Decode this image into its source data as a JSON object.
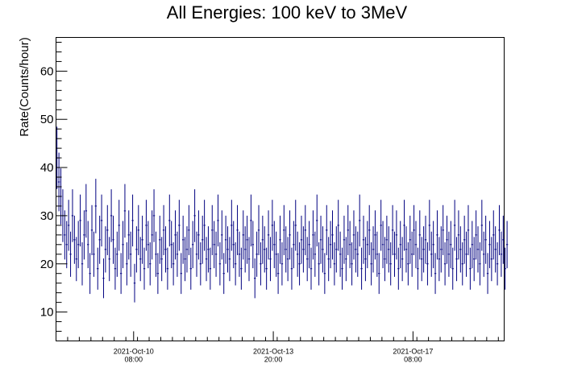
{
  "chart_data": {
    "type": "scatter",
    "title": "All Energies:  100 keV to 3MeV",
    "xlabel": "",
    "ylabel": "Rate(Counts/hour)",
    "x_units": "hours",
    "xlim": [
      0,
      231
    ],
    "ylim": [
      4,
      67
    ],
    "y_ticks": [
      10,
      20,
      30,
      40,
      50,
      60
    ],
    "x_ticks": [
      {
        "x": 40,
        "date": "2021-Oct-10",
        "time": "08:00"
      },
      {
        "x": 112,
        "date": "2021-Oct-13",
        "time": "20:00"
      },
      {
        "x": 184,
        "date": "2021-Oct-17",
        "time": "08:00"
      }
    ],
    "grid": false,
    "error_bars": true,
    "series": [
      {
        "color": "#000080",
        "values": [
          42,
          37,
          34,
          30,
          26,
          24,
          28,
          22,
          30,
          25,
          21,
          24,
          29,
          20,
          26,
          31,
          24,
          18,
          27,
          22,
          32,
          19,
          25,
          29,
          17,
          23,
          27,
          21,
          30,
          25,
          19,
          22,
          28,
          18,
          24,
          31,
          20,
          26,
          22,
          29,
          16,
          23,
          27,
          21,
          25,
          19,
          28,
          24,
          20,
          26,
          30,
          22,
          18,
          25,
          21,
          27,
          23,
          19,
          29,
          24,
          20,
          26,
          22,
          28,
          18,
          25,
          21,
          23,
          27,
          19,
          24,
          30,
          22,
          26,
          20,
          25,
          28,
          21,
          23,
          19,
          27,
          24,
          22,
          29,
          20,
          26,
          18,
          25,
          23,
          21,
          28,
          24,
          20,
          27,
          22,
          19,
          26,
          23,
          25,
          21,
          29,
          24,
          17,
          22,
          27,
          20,
          25,
          23,
          19,
          26,
          21,
          28,
          24,
          22,
          18,
          25,
          20,
          27,
          23,
          21,
          26,
          19,
          24,
          28,
          22,
          20,
          25,
          23,
          27,
          21,
          24,
          19,
          26,
          22,
          29,
          20,
          25,
          23,
          18,
          27,
          21,
          24,
          26,
          20,
          23,
          28,
          22,
          19,
          25,
          21,
          27,
          24,
          20,
          26,
          23,
          22,
          29,
          19,
          25,
          21,
          24,
          27,
          20,
          23,
          26,
          22,
          18,
          28,
          24,
          21,
          25,
          23,
          20,
          27,
          22,
          26,
          19,
          24,
          21,
          28,
          23,
          20,
          25,
          22,
          27,
          24,
          19,
          26,
          21,
          23,
          25,
          20,
          28,
          22,
          24,
          18,
          26,
          21,
          23,
          27,
          20,
          25,
          22,
          24,
          19,
          28,
          21,
          26,
          23,
          20,
          25,
          22,
          27,
          19,
          24,
          21,
          26,
          23,
          20,
          28,
          22,
          25,
          18,
          24,
          21,
          26,
          23,
          20,
          27,
          22,
          25,
          19,
          24
        ]
      }
    ]
  }
}
